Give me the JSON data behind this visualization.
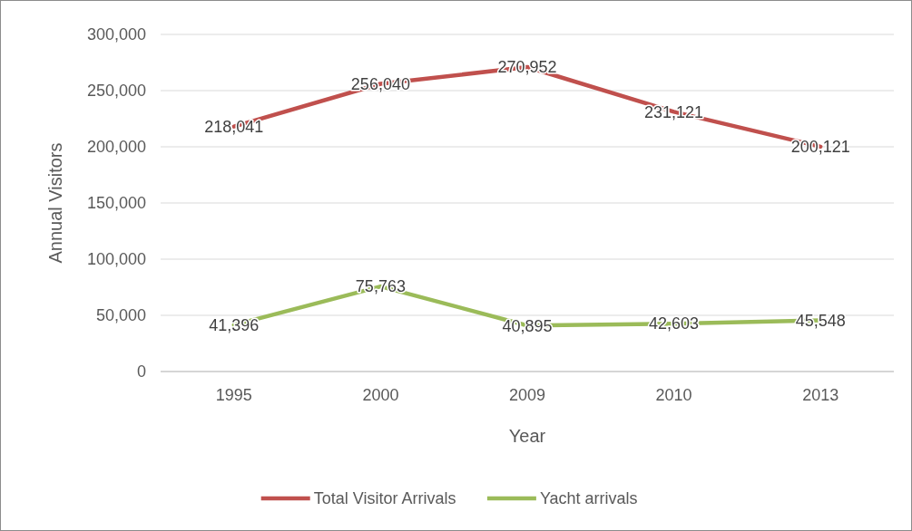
{
  "chart_data": {
    "type": "line",
    "xlabel": "Year",
    "ylabel": "Annual Visitors",
    "categories": [
      "1995",
      "2000",
      "2009",
      "2010",
      "2013"
    ],
    "series": [
      {
        "name": "Total Visitor Arrivals",
        "color": "#c0504d",
        "values": [
          218041,
          256040,
          270952,
          231121,
          200121
        ],
        "value_labels": [
          "218,041",
          "256,040",
          "270,952",
          "231,121",
          "200,121"
        ]
      },
      {
        "name": "Yacht arrivals",
        "color": "#9bbb59",
        "values": [
          41396,
          75763,
          40895,
          42603,
          45548
        ],
        "value_labels": [
          "41,396",
          "75,763",
          "40,895",
          "42,603",
          "45,548"
        ]
      }
    ],
    "ylim": [
      0,
      300000
    ],
    "yticks": [
      {
        "value": 0,
        "label": "0"
      },
      {
        "value": 50000,
        "label": "50,000"
      },
      {
        "value": 100000,
        "label": "100,000"
      },
      {
        "value": 150000,
        "label": "150,000"
      },
      {
        "value": 200000,
        "label": "200,000"
      },
      {
        "value": 250000,
        "label": "250,000"
      },
      {
        "value": 300000,
        "label": "300,000"
      }
    ],
    "grid": "y",
    "legend": "bottom",
    "marker": "none",
    "line_style": "solid"
  }
}
